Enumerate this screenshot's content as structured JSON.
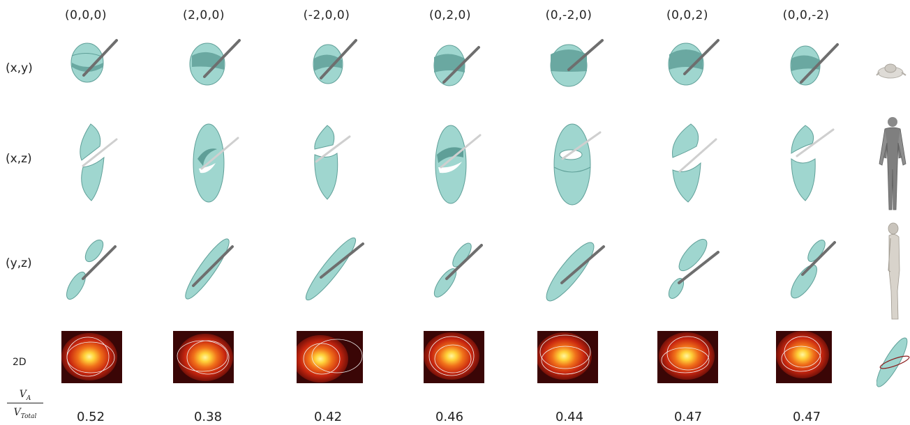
{
  "columns": [
    {
      "header": "(0,0,0)",
      "value": "0.52"
    },
    {
      "header": "(2,0,0)",
      "value": "0.38"
    },
    {
      "header": "(-2,0,0)",
      "value": "0.42"
    },
    {
      "header": "(0,2,0)",
      "value": "0.46"
    },
    {
      "header": "(0,-2,0)",
      "value": "0.44"
    },
    {
      "header": "(0,0,2)",
      "value": "0.47"
    },
    {
      "header": "(0,0,-2)",
      "value": "0.47"
    }
  ],
  "rows": [
    {
      "label": "(x,y)"
    },
    {
      "label": "(x,z)"
    },
    {
      "label": "(y,z)"
    },
    {
      "label": "2D"
    }
  ],
  "ratio": {
    "numerator": "V",
    "numerator_sub": "A",
    "denominator": "V",
    "denominator_sub": "Total"
  },
  "colors": {
    "ellipsoid": "#9fd6cf",
    "ellipsoid_dark": "#5f9f98",
    "needle": "#7a7a7a",
    "heat_outer": "#3a0606",
    "heat_mid": "#c8260f",
    "heat_core": "#fff6a0",
    "contour": "#f2f2f2"
  }
}
